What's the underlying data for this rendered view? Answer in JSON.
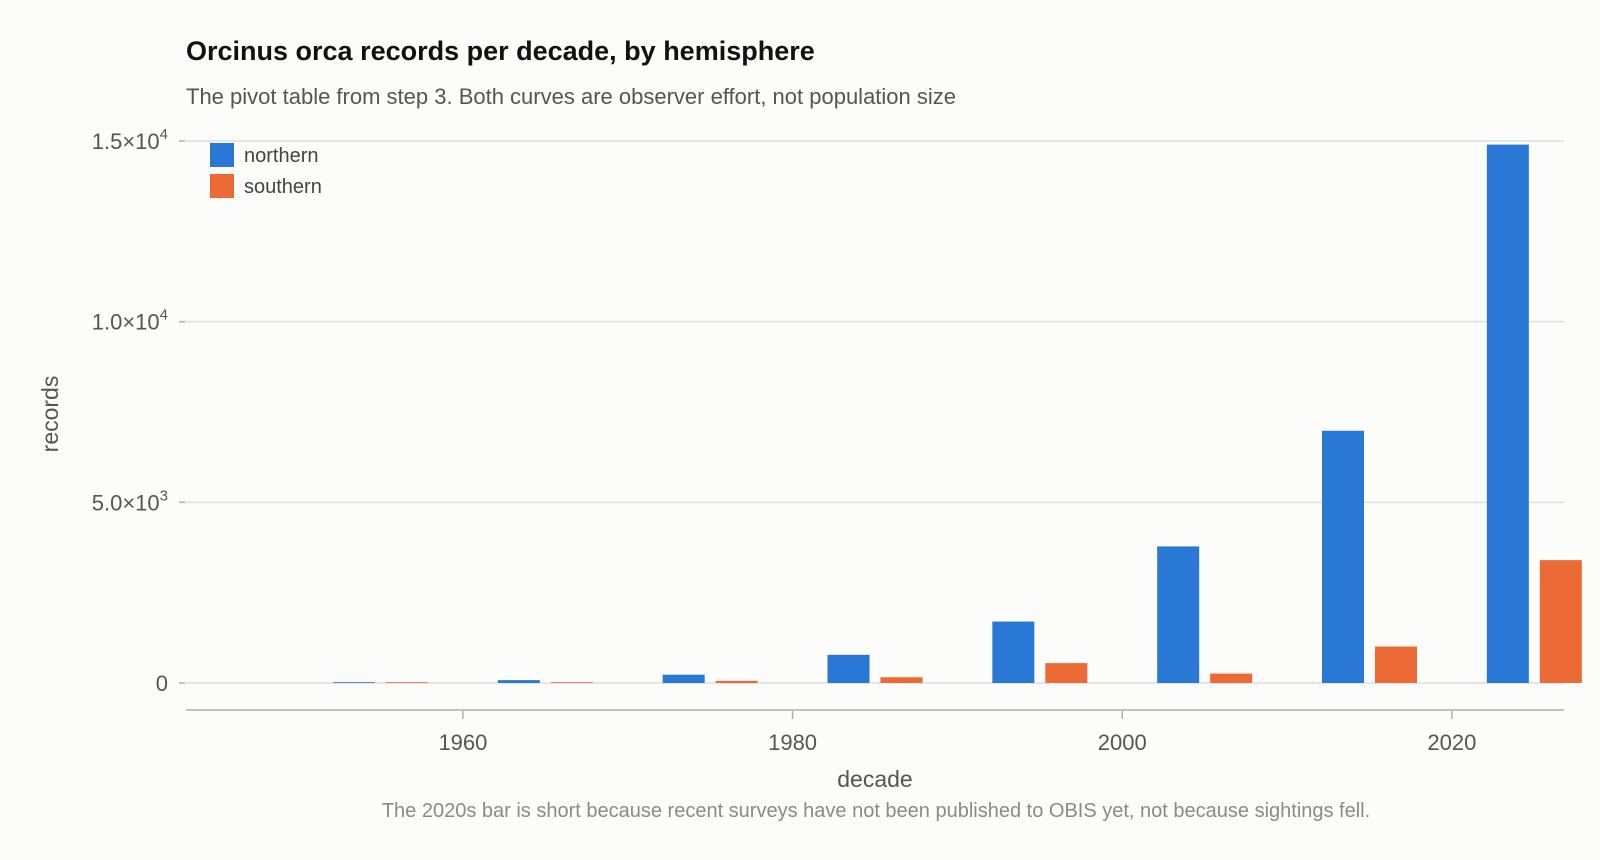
{
  "chart_data": {
    "type": "bar",
    "title": "Orcinus orca records per decade, by hemisphere",
    "subtitle": "The pivot table from step 3. Both curves are observer effort, not population size",
    "xlabel": "decade",
    "ylabel": "records",
    "categories": [
      1950,
      1960,
      1970,
      1980,
      1990,
      2000,
      2010,
      2020
    ],
    "x_ticks": [
      1960,
      1980,
      2000,
      2020
    ],
    "x_tick_labels": [
      "1960",
      "1980",
      "2000",
      "2020"
    ],
    "y_ticks": [
      0,
      5000,
      10000,
      15000
    ],
    "y_tick_labels": [
      {
        "mantissa": "0",
        "exponent": ""
      },
      {
        "mantissa": "5.0×10",
        "exponent": "3"
      },
      {
        "mantissa": "1.0×10",
        "exponent": "4"
      },
      {
        "mantissa": "1.5×10",
        "exponent": "4"
      }
    ],
    "xlim": [
      1943.2,
      2026.8
    ],
    "ylim": [
      0,
      15000
    ],
    "grid": "horizontal",
    "legend_position": "top-left",
    "series": [
      {
        "name": "northern",
        "color": "#2978d6",
        "values": [
          15,
          80,
          230,
          780,
          1700,
          3780,
          6980,
          14900
        ]
      },
      {
        "name": "southern",
        "color": "#ec6a35",
        "values": [
          10,
          20,
          60,
          160,
          550,
          260,
          1010,
          3400
        ]
      }
    ],
    "footnote": "The 2020s bar is short because recent surveys have not been published to OBIS yet, not because sightings fell."
  },
  "colors": {
    "background": "#fcfcfb",
    "grid": "#dedede",
    "axis": "#b0b0b0"
  }
}
